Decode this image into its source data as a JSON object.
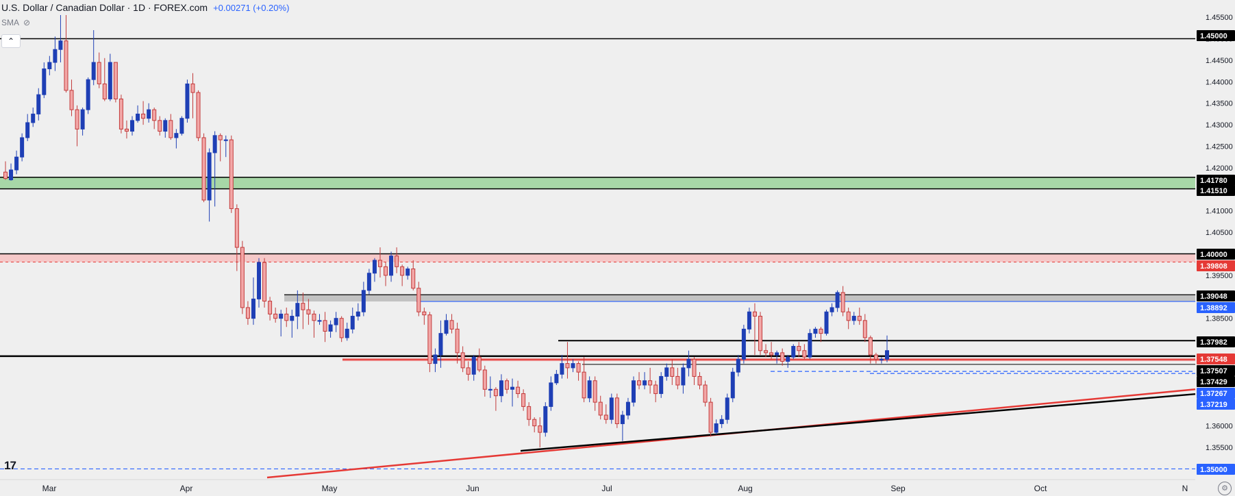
{
  "header": {
    "symbol": "U.S. Dollar / Canadian Dollar · 1D · FOREX.com",
    "change": "+0.00271 (+0.20%)"
  },
  "indicator": {
    "name": "SMA"
  },
  "logo": {
    "text": "17"
  },
  "colors": {
    "up": "#1e3fb5",
    "down_fill": "#f2a7a7",
    "down_border": "#c23a3a",
    "support_green": "#9fd49f",
    "resistance_red": "#f5c3c3",
    "zone_gray": "#bdbdbd",
    "red_line": "#e53935",
    "blue_dash": "#2962ff"
  },
  "chart_data": {
    "type": "candlestick",
    "title": "",
    "xlabel": "",
    "ylabel": "",
    "ylim": [
      1.348,
      1.4555
    ],
    "x_tick_labels": [
      "Mar",
      "Apr",
      "May",
      "Jun",
      "Jul",
      "Aug",
      "Sep",
      "Oct",
      "N"
    ],
    "y_tick_labels": [
      "1.45500",
      "1.45000",
      "1.44500",
      "1.44000",
      "1.43500",
      "1.43000",
      "1.42500",
      "1.42000",
      "1.41500",
      "1.41000",
      "1.40500",
      "1.40000",
      "1.39500",
      "1.39000",
      "1.38500",
      "1.38000",
      "1.37500",
      "1.37000",
      "1.36500",
      "1.36000",
      "1.35500",
      "1.35000"
    ],
    "price_labels": [
      {
        "text": "1.45000",
        "value": 1.45,
        "style": "black"
      },
      {
        "text": "1.41780",
        "value": 1.4178,
        "style": "black"
      },
      {
        "text": "1.41510",
        "value": 1.4151,
        "style": "black"
      },
      {
        "text": "1.40000",
        "value": 1.4,
        "style": "black"
      },
      {
        "text": "1.39808",
        "value": 1.39808,
        "style": "red"
      },
      {
        "text": "1.39048",
        "value": 1.39048,
        "style": "black"
      },
      {
        "text": "1.38892",
        "value": 1.38892,
        "style": "blue"
      },
      {
        "text": "1.37982",
        "value": 1.37982,
        "style": "black"
      },
      {
        "text": "1.37548",
        "value": 1.37548,
        "style": "red"
      },
      {
        "text": "1.37507",
        "value": 1.37507,
        "style": "black"
      },
      {
        "text": "1.37429",
        "value": 1.37429,
        "style": "black"
      },
      {
        "text": "1.37267",
        "value": 1.37267,
        "style": "blue"
      },
      {
        "text": "1.37219",
        "value": 1.37219,
        "style": "blue"
      },
      {
        "text": "1.35000",
        "value": 1.35,
        "style": "blue"
      }
    ],
    "candles": [
      [
        1.419,
        1.4175,
        1.4215,
        1.4172
      ],
      [
        1.4172,
        1.4195,
        1.421,
        1.417
      ],
      [
        1.4195,
        1.4225,
        1.424,
        1.4185
      ],
      [
        1.4225,
        1.427,
        1.428,
        1.4215
      ],
      [
        1.427,
        1.4305,
        1.4325,
        1.4262
      ],
      [
        1.4305,
        1.4325,
        1.434,
        1.4295
      ],
      [
        1.4325,
        1.437,
        1.4385,
        1.431
      ],
      [
        1.437,
        1.443,
        1.4445,
        1.4362
      ],
      [
        1.443,
        1.4445,
        1.446,
        1.4415
      ],
      [
        1.4445,
        1.4475,
        1.4505,
        1.4425
      ],
      [
        1.4475,
        1.4495,
        1.4555,
        1.4445
      ],
      [
        1.4495,
        1.438,
        1.4555,
        1.4375
      ],
      [
        1.438,
        1.4335,
        1.4405,
        1.432
      ],
      [
        1.4335,
        1.429,
        1.4345,
        1.425
      ],
      [
        1.429,
        1.4335,
        1.434,
        1.4275
      ],
      [
        1.4335,
        1.4405,
        1.441,
        1.4325
      ],
      [
        1.4405,
        1.4445,
        1.452,
        1.4392
      ],
      [
        1.4445,
        1.4395,
        1.4468,
        1.4385
      ],
      [
        1.4395,
        1.436,
        1.4455,
        1.4355
      ],
      [
        1.436,
        1.4445,
        1.4465,
        1.4355
      ],
      [
        1.4445,
        1.436,
        1.4445,
        1.4352
      ],
      [
        1.436,
        1.429,
        1.437,
        1.428
      ],
      [
        1.429,
        1.4285,
        1.431,
        1.4268
      ],
      [
        1.4285,
        1.431,
        1.432,
        1.4275
      ],
      [
        1.431,
        1.4325,
        1.4345,
        1.4305
      ],
      [
        1.4325,
        1.4315,
        1.4355,
        1.43
      ],
      [
        1.4315,
        1.4335,
        1.435,
        1.4305
      ],
      [
        1.4335,
        1.431,
        1.434,
        1.429
      ],
      [
        1.431,
        1.4285,
        1.432,
        1.4275
      ],
      [
        1.4285,
        1.431,
        1.4315,
        1.427
      ],
      [
        1.431,
        1.427,
        1.4325,
        1.4265
      ],
      [
        1.427,
        1.428,
        1.429,
        1.4245
      ],
      [
        1.428,
        1.4315,
        1.432,
        1.4275
      ],
      [
        1.4315,
        1.4395,
        1.4405,
        1.4305
      ],
      [
        1.4395,
        1.4375,
        1.442,
        1.4315
      ],
      [
        1.4375,
        1.427,
        1.438,
        1.4262
      ],
      [
        1.427,
        1.4125,
        1.428,
        1.412
      ],
      [
        1.4125,
        1.4235,
        1.4245,
        1.4075
      ],
      [
        1.4235,
        1.4275,
        1.4285,
        1.411
      ],
      [
        1.4275,
        1.4265,
        1.428,
        1.4215
      ],
      [
        1.4265,
        1.4265,
        1.4275,
        1.4225
      ],
      [
        1.4265,
        1.4105,
        1.4275,
        1.4095
      ],
      [
        1.4105,
        1.4015,
        1.4115,
        1.396
      ],
      [
        1.4015,
        1.3875,
        1.403,
        1.386
      ],
      [
        1.3875,
        1.385,
        1.389,
        1.3835
      ],
      [
        1.385,
        1.3895,
        1.3945,
        1.3835
      ],
      [
        1.3895,
        1.398,
        1.399,
        1.3875
      ],
      [
        1.398,
        1.389,
        1.399,
        1.3875
      ],
      [
        1.389,
        1.386,
        1.39,
        1.3845
      ],
      [
        1.386,
        1.385,
        1.3875,
        1.384
      ],
      [
        1.385,
        1.386,
        1.387,
        1.3808
      ],
      [
        1.386,
        1.3845,
        1.3875,
        1.383
      ],
      [
        1.3845,
        1.3855,
        1.387,
        1.3805
      ],
      [
        1.3855,
        1.3885,
        1.3915,
        1.3825
      ],
      [
        1.3885,
        1.387,
        1.391,
        1.3825
      ],
      [
        1.387,
        1.386,
        1.3895,
        1.3835
      ],
      [
        1.386,
        1.3845,
        1.3868,
        1.3805
      ],
      [
        1.3845,
        1.3845,
        1.386,
        1.3835
      ],
      [
        1.3845,
        1.382,
        1.3865,
        1.3795
      ],
      [
        1.382,
        1.3835,
        1.3845,
        1.3805
      ],
      [
        1.3835,
        1.385,
        1.3865,
        1.3818
      ],
      [
        1.385,
        1.3805,
        1.3855,
        1.3795
      ],
      [
        1.3805,
        1.3825,
        1.384,
        1.3798
      ],
      [
        1.3825,
        1.3855,
        1.3875,
        1.3815
      ],
      [
        1.3855,
        1.3865,
        1.3885,
        1.3845
      ],
      [
        1.3865,
        1.3915,
        1.3935,
        1.3855
      ],
      [
        1.3915,
        1.3955,
        1.3965,
        1.3905
      ],
      [
        1.3955,
        1.3985,
        1.399,
        1.3935
      ],
      [
        1.3985,
        1.397,
        1.4015,
        1.3945
      ],
      [
        1.397,
        1.395,
        1.398,
        1.3925
      ],
      [
        1.395,
        1.3995,
        1.4005,
        1.3935
      ],
      [
        1.3995,
        1.397,
        1.4015,
        1.3955
      ],
      [
        1.397,
        1.395,
        1.3975,
        1.3925
      ],
      [
        1.395,
        1.3965,
        1.397,
        1.394
      ],
      [
        1.3965,
        1.392,
        1.3985,
        1.3915
      ],
      [
        1.392,
        1.3865,
        1.3935,
        1.3855
      ],
      [
        1.3865,
        1.3858,
        1.3875,
        1.3835
      ],
      [
        1.3858,
        1.3745,
        1.3865,
        1.3725
      ],
      [
        1.3745,
        1.3765,
        1.378,
        1.3725
      ],
      [
        1.3765,
        1.3815,
        1.3845,
        1.3735
      ],
      [
        1.3815,
        1.3845,
        1.386,
        1.381
      ],
      [
        1.3845,
        1.3825,
        1.386,
        1.3815
      ],
      [
        1.3825,
        1.377,
        1.384,
        1.3745
      ],
      [
        1.377,
        1.3735,
        1.3785,
        1.3725
      ],
      [
        1.3735,
        1.372,
        1.375,
        1.3705
      ],
      [
        1.372,
        1.376,
        1.3765,
        1.3705
      ],
      [
        1.376,
        1.373,
        1.378,
        1.3725
      ],
      [
        1.373,
        1.3685,
        1.374,
        1.3668
      ],
      [
        1.3685,
        1.3685,
        1.3715,
        1.3665
      ],
      [
        1.3685,
        1.367,
        1.369,
        1.3635
      ],
      [
        1.367,
        1.3705,
        1.372,
        1.3655
      ],
      [
        1.3705,
        1.3685,
        1.371,
        1.3675
      ],
      [
        1.3685,
        1.369,
        1.371,
        1.3645
      ],
      [
        1.369,
        1.3675,
        1.3705,
        1.3665
      ],
      [
        1.3675,
        1.3645,
        1.3685,
        1.3635
      ],
      [
        1.3645,
        1.3615,
        1.3655,
        1.36
      ],
      [
        1.3615,
        1.36,
        1.362,
        1.3585
      ],
      [
        1.36,
        1.3585,
        1.362,
        1.355
      ],
      [
        1.3585,
        1.3645,
        1.3655,
        1.3575
      ],
      [
        1.3645,
        1.37,
        1.3715,
        1.3635
      ],
      [
        1.37,
        1.372,
        1.373,
        1.3695
      ],
      [
        1.372,
        1.3745,
        1.3765,
        1.371
      ],
      [
        1.3745,
        1.3735,
        1.3795,
        1.371
      ],
      [
        1.3735,
        1.3745,
        1.3755,
        1.3725
      ],
      [
        1.3745,
        1.3725,
        1.375,
        1.3705
      ],
      [
        1.3725,
        1.3665,
        1.376,
        1.3655
      ],
      [
        1.3665,
        1.3705,
        1.3715,
        1.3655
      ],
      [
        1.3705,
        1.3655,
        1.3715,
        1.3635
      ],
      [
        1.3655,
        1.3625,
        1.367,
        1.3615
      ],
      [
        1.3625,
        1.3615,
        1.365,
        1.3605
      ],
      [
        1.3615,
        1.3665,
        1.3675,
        1.3605
      ],
      [
        1.3665,
        1.3605,
        1.3675,
        1.3595
      ],
      [
        1.3605,
        1.3625,
        1.3635,
        1.3565
      ],
      [
        1.3625,
        1.3655,
        1.3665,
        1.3615
      ],
      [
        1.3655,
        1.3705,
        1.3715,
        1.3645
      ],
      [
        1.3705,
        1.3695,
        1.3725,
        1.3685
      ],
      [
        1.3695,
        1.3705,
        1.3725,
        1.3685
      ],
      [
        1.3705,
        1.3695,
        1.3735,
        1.3675
      ],
      [
        1.3695,
        1.3675,
        1.3705,
        1.3655
      ],
      [
        1.3675,
        1.3715,
        1.3725,
        1.3665
      ],
      [
        1.3715,
        1.3735,
        1.3745,
        1.3705
      ],
      [
        1.3735,
        1.3715,
        1.3755,
        1.3695
      ],
      [
        1.3715,
        1.3695,
        1.3735,
        1.3685
      ],
      [
        1.3695,
        1.3735,
        1.3745,
        1.3675
      ],
      [
        1.3735,
        1.3755,
        1.3775,
        1.3715
      ],
      [
        1.3755,
        1.3715,
        1.376,
        1.3695
      ],
      [
        1.3715,
        1.3695,
        1.3725,
        1.3685
      ],
      [
        1.3695,
        1.3655,
        1.3705,
        1.3645
      ],
      [
        1.3655,
        1.3585,
        1.3665,
        1.3575
      ],
      [
        1.3585,
        1.3605,
        1.3615,
        1.358
      ],
      [
        1.3605,
        1.3615,
        1.3625,
        1.3595
      ],
      [
        1.3615,
        1.3665,
        1.3675,
        1.3605
      ],
      [
        1.3665,
        1.3725,
        1.3735,
        1.3655
      ],
      [
        1.3725,
        1.3755,
        1.3765,
        1.3715
      ],
      [
        1.3755,
        1.3825,
        1.3835,
        1.3745
      ],
      [
        1.3825,
        1.3865,
        1.3875,
        1.3815
      ],
      [
        1.3865,
        1.3855,
        1.3885,
        1.3765
      ],
      [
        1.3855,
        1.3775,
        1.3865,
        1.3765
      ],
      [
        1.3775,
        1.377,
        1.379,
        1.376
      ],
      [
        1.377,
        1.3765,
        1.3795,
        1.3755
      ],
      [
        1.3765,
        1.377,
        1.3775,
        1.3745
      ],
      [
        1.377,
        1.375,
        1.378,
        1.374
      ],
      [
        1.375,
        1.376,
        1.3765,
        1.3735
      ],
      [
        1.376,
        1.3785,
        1.379,
        1.3755
      ],
      [
        1.3785,
        1.3775,
        1.3795,
        1.376
      ],
      [
        1.3775,
        1.376,
        1.379,
        1.3755
      ],
      [
        1.376,
        1.3815,
        1.3825,
        1.3755
      ],
      [
        1.3815,
        1.3825,
        1.383,
        1.3805
      ],
      [
        1.3825,
        1.3815,
        1.383,
        1.3795
      ],
      [
        1.3815,
        1.3865,
        1.387,
        1.381
      ],
      [
        1.3865,
        1.3875,
        1.3885,
        1.3855
      ],
      [
        1.3875,
        1.391,
        1.3915,
        1.3865
      ],
      [
        1.391,
        1.3865,
        1.3925,
        1.3855
      ],
      [
        1.3865,
        1.3845,
        1.3875,
        1.3825
      ],
      [
        1.3845,
        1.3855,
        1.3865,
        1.3835
      ],
      [
        1.3855,
        1.3845,
        1.3875,
        1.3835
      ],
      [
        1.3845,
        1.3805,
        1.386,
        1.3795
      ],
      [
        1.3805,
        1.3765,
        1.381,
        1.3745
      ],
      [
        1.3765,
        1.3755,
        1.377,
        1.3745
      ],
      [
        1.3755,
        1.3755,
        1.376,
        1.3745
      ],
      [
        1.3755,
        1.3775,
        1.381,
        1.3748
      ]
    ],
    "zones": [
      {
        "name": "support",
        "from": 1.4151,
        "to": 1.4178,
        "color": "#9fd49f"
      },
      {
        "name": "resistance",
        "from": 1.39808,
        "to": 1.4,
        "color": "#f5c3c3"
      },
      {
        "name": "gray-zone",
        "from": 1.38892,
        "to": 1.39048,
        "color": "#bdbdbd"
      },
      {
        "name": "red-zone",
        "from": 1.37507,
        "to": 1.37548,
        "color": "#ee8a8a"
      }
    ]
  }
}
